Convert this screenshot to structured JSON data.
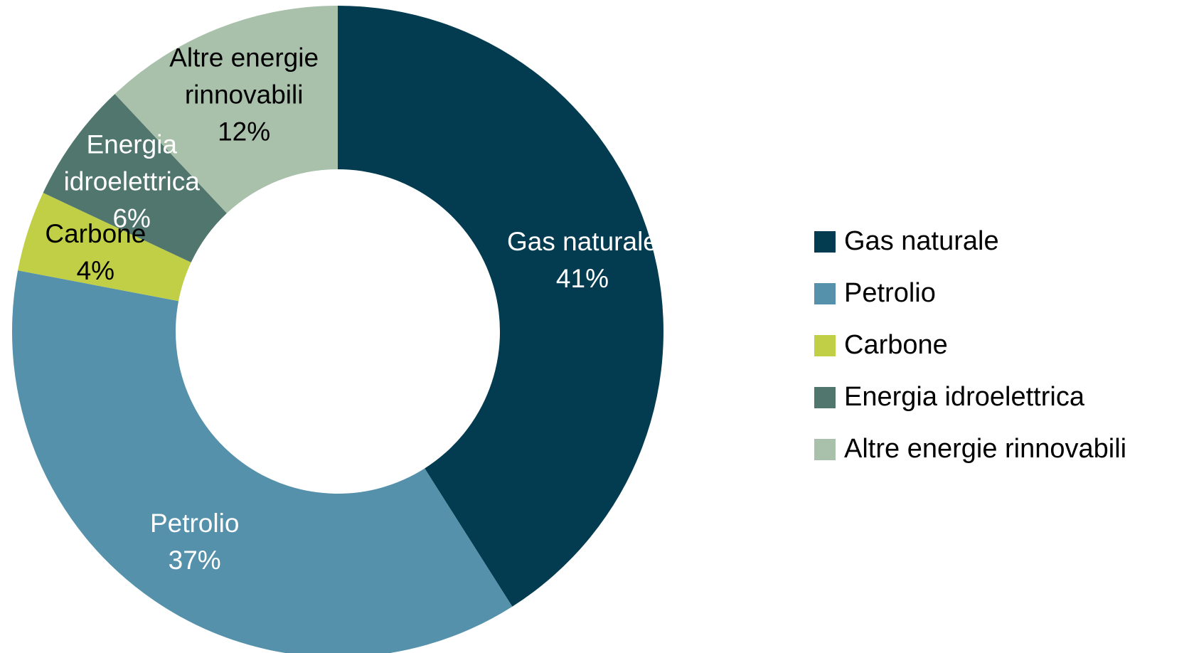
{
  "chart_data": {
    "type": "donut",
    "categories": [
      "Gas naturale",
      "Petrolio",
      "Carbone",
      "Energia idroelettrica",
      "Altre energie rinnovabili"
    ],
    "values": [
      41,
      37,
      4,
      6,
      12
    ],
    "value_labels": [
      "41%",
      "37%",
      "4%",
      "6%",
      "12%"
    ],
    "colors": [
      "#033c51",
      "#5591ab",
      "#c0cf45",
      "#51766d",
      "#a9c0ab"
    ],
    "label_colors": [
      "#ffffff",
      "#ffffff",
      "#000000",
      "#ffffff",
      "#000000"
    ],
    "legend": "right"
  }
}
